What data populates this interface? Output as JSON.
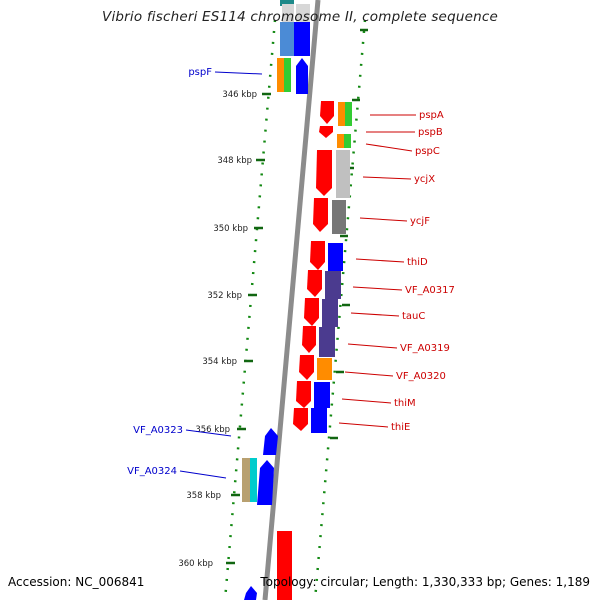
{
  "title": "Vibrio fischeri ES114 chromosome II, complete sequence",
  "accession": "Accession: NC_006841",
  "topology": "Topology: circular; Length: 1,330,333 bp; Genes: 1,189",
  "colors": {
    "forward": "#ff0000",
    "reverse": "#0000ff",
    "axis": "#888888",
    "tick": "#006400",
    "label_left": "#0000cc",
    "label_right": "#cc0000",
    "tick_label": "#222222"
  },
  "ticks": [
    {
      "kb": 346,
      "label": "346 kbp"
    },
    {
      "kb": 348,
      "label": "348 kbp"
    },
    {
      "kb": 350,
      "label": "350 kbp"
    },
    {
      "kb": 352,
      "label": "352 kbp"
    },
    {
      "kb": 354,
      "label": "354 kbp"
    },
    {
      "kb": 356,
      "label": "356 kbp"
    },
    {
      "kb": 358,
      "label": "358 kbp"
    },
    {
      "kb": 360,
      "label": "360 kbp"
    }
  ],
  "gene_labels": [
    {
      "name": "pspF",
      "side": "left"
    },
    {
      "name": "VF_A0323",
      "side": "left"
    },
    {
      "name": "VF_A0324",
      "side": "left"
    },
    {
      "name": "pspA",
      "side": "right"
    },
    {
      "name": "pspB",
      "side": "right"
    },
    {
      "name": "pspC",
      "side": "right"
    },
    {
      "name": "ycjX",
      "side": "right"
    },
    {
      "name": "ycjF",
      "side": "right"
    },
    {
      "name": "thiD",
      "side": "right"
    },
    {
      "name": "VF_A0317",
      "side": "right"
    },
    {
      "name": "tauC",
      "side": "right"
    },
    {
      "name": "VF_A0319",
      "side": "right"
    },
    {
      "name": "VF_A0320",
      "side": "right"
    },
    {
      "name": "thiM",
      "side": "right"
    },
    {
      "name": "thiE",
      "side": "right"
    }
  ]
}
